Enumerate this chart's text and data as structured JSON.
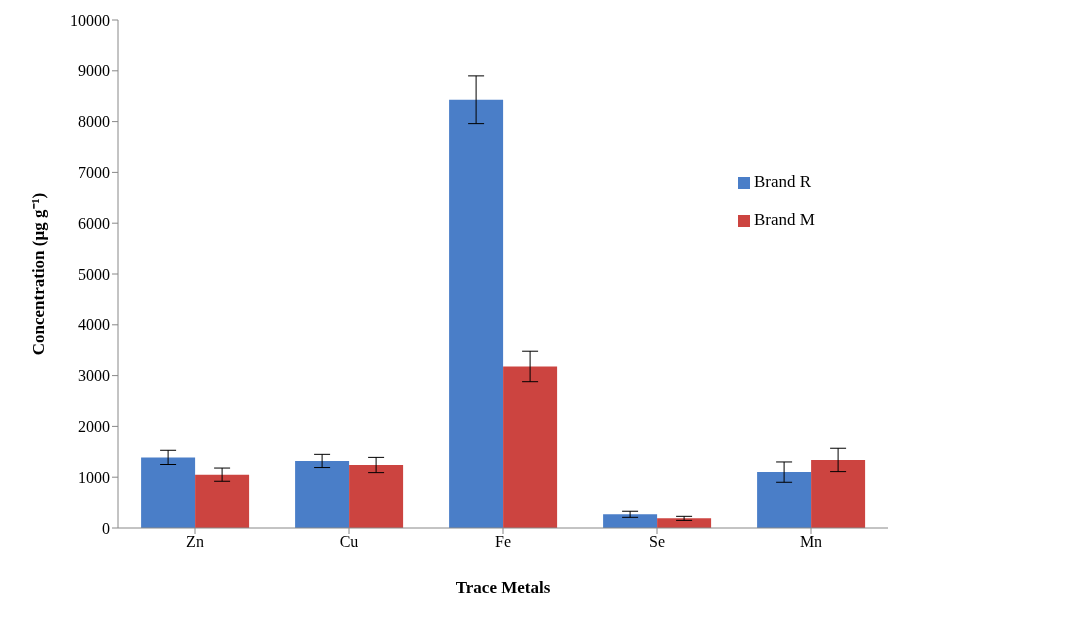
{
  "chart_data": {
    "type": "bar",
    "xlabel": "Trace Metals",
    "ylabel": "Concentration (µg g⁻¹)",
    "categories": [
      "Zn",
      "Cu",
      "Fe",
      "Se",
      "Mn"
    ],
    "series": [
      {
        "name": "Brand R",
        "color": "#4a7ec8",
        "values": [
          1390,
          1320,
          8430,
          270,
          1100
        ],
        "errors": [
          140,
          130,
          470,
          60,
          200
        ]
      },
      {
        "name": "Brand M",
        "color": "#cc4440",
        "values": [
          1050,
          1240,
          3180,
          190,
          1340
        ],
        "errors": [
          130,
          150,
          300,
          40,
          230
        ]
      }
    ],
    "ylim": [
      0,
      10000
    ],
    "yticks": [
      0,
      1000,
      2000,
      3000,
      4000,
      5000,
      6000,
      7000,
      8000,
      9000,
      10000
    ],
    "grid": false,
    "legend": "right"
  }
}
